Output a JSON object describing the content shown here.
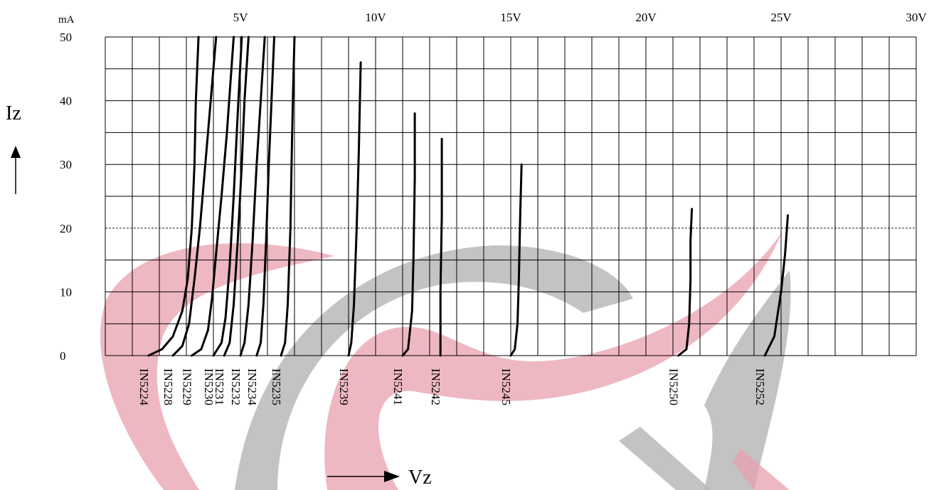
{
  "chart_data": {
    "type": "line",
    "title": "",
    "xlabel": "Vz",
    "ylabel": "Iz",
    "y_unit": "mA",
    "xlim": [
      0,
      30
    ],
    "ylim": [
      0,
      50
    ],
    "grid": true,
    "x_ticks": [
      "5V",
      "10V",
      "15V",
      "20V",
      "25V",
      "30V"
    ],
    "y_ticks": [
      "0",
      "10",
      "20",
      "30",
      "40",
      "50"
    ],
    "reference_line": {
      "y": 20,
      "style": "dashed"
    },
    "series": [
      {
        "name": "IN5224",
        "values": [
          [
            1.6,
            0
          ],
          [
            2.1,
            1
          ],
          [
            2.5,
            3
          ],
          [
            2.85,
            7
          ],
          [
            3.05,
            12
          ],
          [
            3.2,
            20
          ],
          [
            3.3,
            30
          ],
          [
            3.35,
            40
          ],
          [
            3.45,
            50
          ]
        ]
      },
      {
        "name": "IN5228",
        "values": [
          [
            2.5,
            0
          ],
          [
            2.85,
            1.5
          ],
          [
            3.1,
            5
          ],
          [
            3.3,
            12
          ],
          [
            3.5,
            20
          ],
          [
            3.7,
            30
          ],
          [
            3.9,
            40
          ],
          [
            4.1,
            50
          ]
        ]
      },
      {
        "name": "IN5229",
        "values": [
          [
            3.2,
            0
          ],
          [
            3.55,
            1
          ],
          [
            3.8,
            4
          ],
          [
            3.95,
            9
          ],
          [
            4.1,
            16
          ],
          [
            4.3,
            25
          ],
          [
            4.5,
            35
          ],
          [
            4.75,
            50
          ]
        ]
      },
      {
        "name": "IN5230",
        "values": [
          [
            4.0,
            0
          ],
          [
            4.3,
            2
          ],
          [
            4.45,
            6
          ],
          [
            4.6,
            14
          ],
          [
            4.75,
            25
          ],
          [
            4.9,
            38
          ],
          [
            5.05,
            50
          ]
        ]
      },
      {
        "name": "IN5231",
        "values": [
          [
            4.4,
            0
          ],
          [
            4.6,
            2
          ],
          [
            4.75,
            8
          ],
          [
            4.9,
            18
          ],
          [
            5.05,
            30
          ],
          [
            5.15,
            40
          ],
          [
            5.3,
            50
          ]
        ]
      },
      {
        "name": "IN5232",
        "values": [
          [
            5.0,
            0
          ],
          [
            5.15,
            2
          ],
          [
            5.3,
            8
          ],
          [
            5.45,
            18
          ],
          [
            5.6,
            30
          ],
          [
            5.75,
            40
          ],
          [
            5.9,
            50
          ]
        ]
      },
      {
        "name": "IN5234",
        "values": [
          [
            5.6,
            0
          ],
          [
            5.75,
            2
          ],
          [
            5.85,
            8
          ],
          [
            5.95,
            18
          ],
          [
            6.05,
            30
          ],
          [
            6.15,
            40
          ],
          [
            6.25,
            50
          ]
        ]
      },
      {
        "name": "IN5235",
        "values": [
          [
            6.5,
            0
          ],
          [
            6.65,
            2
          ],
          [
            6.75,
            8
          ],
          [
            6.85,
            20
          ],
          [
            6.9,
            32
          ],
          [
            6.95,
            42
          ],
          [
            7.0,
            50
          ]
        ]
      },
      {
        "name": "IN5239",
        "values": [
          [
            9.0,
            0
          ],
          [
            9.1,
            2
          ],
          [
            9.2,
            8
          ],
          [
            9.3,
            20
          ],
          [
            9.38,
            32
          ],
          [
            9.45,
            46
          ]
        ]
      },
      {
        "name": "IN5241",
        "values": [
          [
            11.0,
            0
          ],
          [
            11.2,
            1
          ],
          [
            11.35,
            7
          ],
          [
            11.4,
            15
          ],
          [
            11.45,
            28
          ],
          [
            11.45,
            38
          ]
        ]
      },
      {
        "name": "IN5242",
        "values": [
          [
            12.4,
            0
          ],
          [
            12.4,
            10
          ],
          [
            12.45,
            22
          ],
          [
            12.45,
            34
          ]
        ]
      },
      {
        "name": "IN5245",
        "values": [
          [
            15.0,
            0
          ],
          [
            15.15,
            1
          ],
          [
            15.25,
            5
          ],
          [
            15.3,
            12
          ],
          [
            15.35,
            22
          ],
          [
            15.4,
            30
          ]
        ]
      },
      {
        "name": "IN5250",
        "values": [
          [
            21.2,
            0
          ],
          [
            21.5,
            1
          ],
          [
            21.6,
            5
          ],
          [
            21.65,
            12
          ],
          [
            21.65,
            18
          ],
          [
            21.7,
            23
          ]
        ]
      },
      {
        "name": "IN5252",
        "values": [
          [
            24.4,
            0
          ],
          [
            24.75,
            3
          ],
          [
            25.0,
            10
          ],
          [
            25.15,
            16
          ],
          [
            25.25,
            22
          ]
        ]
      }
    ]
  }
}
